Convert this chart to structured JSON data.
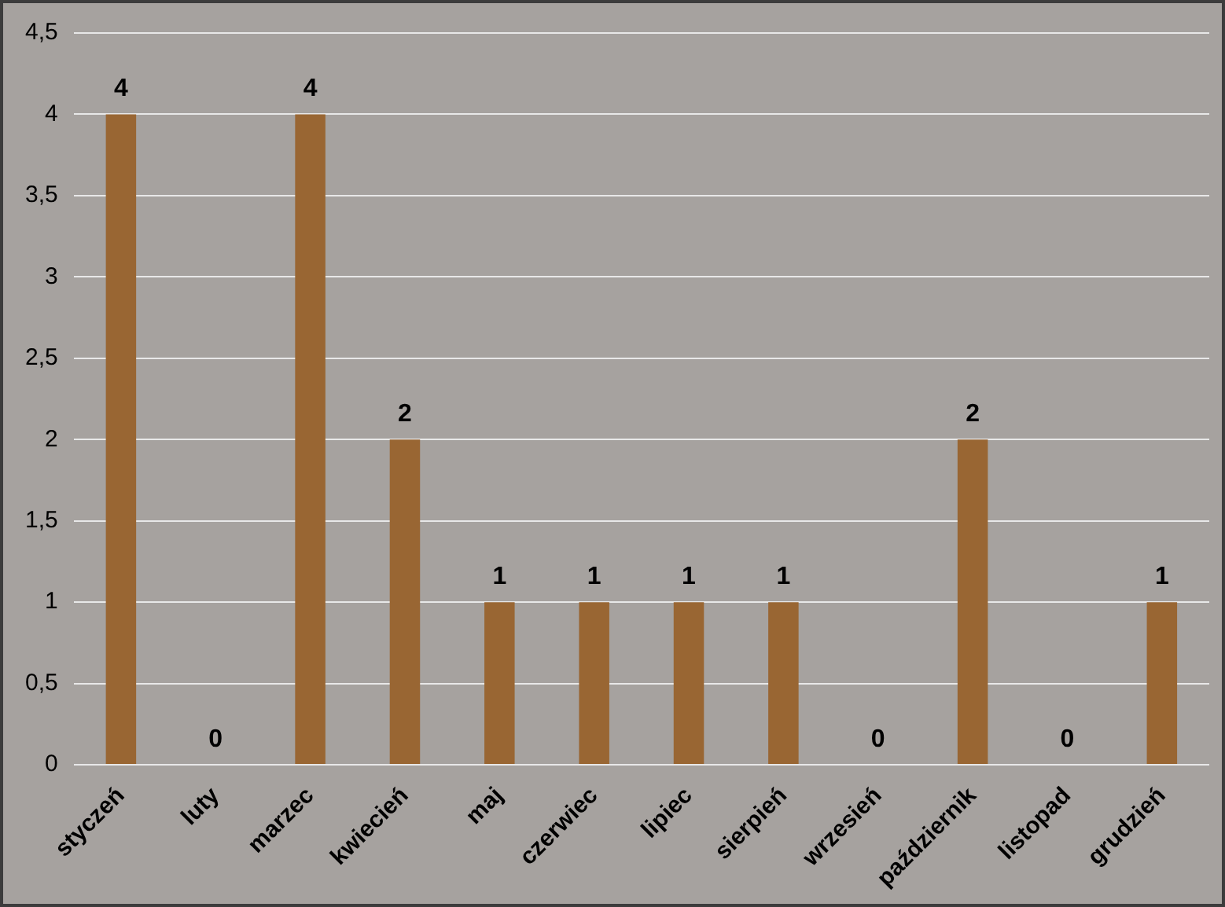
{
  "chart_data": {
    "type": "bar",
    "categories": [
      "styczeń",
      "luty",
      "marzec",
      "kwiecień",
      "maj",
      "czerwiec",
      "lipiec",
      "sierpień",
      "wrzesień",
      "październik",
      "listopad",
      "grudzień"
    ],
    "values": [
      4,
      0,
      4,
      2,
      1,
      1,
      1,
      1,
      0,
      2,
      0,
      1
    ],
    "color": "#996633",
    "ylim": [
      0,
      4.5
    ],
    "yticks": [
      0,
      {
        "value": 0.5,
        "label": "0,5"
      },
      1,
      {
        "value": 1.5,
        "label": "1,5"
      },
      2,
      {
        "value": 2.5,
        "label": "2,5"
      },
      3,
      {
        "value": 3.5,
        "label": "3,5"
      },
      4,
      {
        "value": 4.5,
        "label": "4,5"
      }
    ],
    "grid": "y",
    "data_labels": true,
    "legend": false
  }
}
